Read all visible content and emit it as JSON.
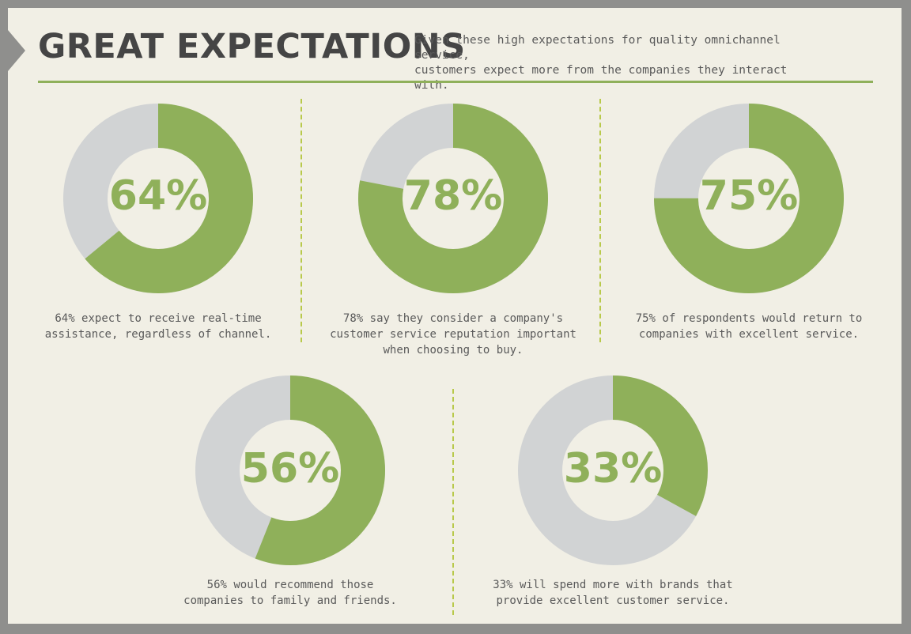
{
  "header": {
    "title": "GREAT EXPECTATIONS",
    "subtitle_lines": [
      "Given these high expectations for quality omnichannel service,",
      "customers expect more from the companies they interact with."
    ]
  },
  "colors": {
    "accent": "#8fb05a",
    "remainder": "#d1d3d4",
    "background": "#f1efe5",
    "frame": "#8f8f8d",
    "text": "#454545"
  },
  "chart_data": [
    {
      "type": "pie",
      "value": 64,
      "label": "64%",
      "caption": [
        "64% expect to receive real-time",
        "assistance, regardless of channel."
      ]
    },
    {
      "type": "pie",
      "value": 78,
      "label": "78%",
      "caption": [
        "78% say they consider a company's",
        "customer service reputation important",
        "when choosing to buy."
      ]
    },
    {
      "type": "pie",
      "value": 75,
      "label": "75%",
      "caption": [
        "75% of respondents would return to",
        "companies with excellent service."
      ]
    },
    {
      "type": "pie",
      "value": 56,
      "label": "56%",
      "caption": [
        "56% would recommend those",
        "companies to family and friends."
      ]
    },
    {
      "type": "pie",
      "value": 33,
      "label": "33%",
      "caption": [
        "33% will spend more with brands that",
        "provide excellent customer service."
      ]
    }
  ]
}
